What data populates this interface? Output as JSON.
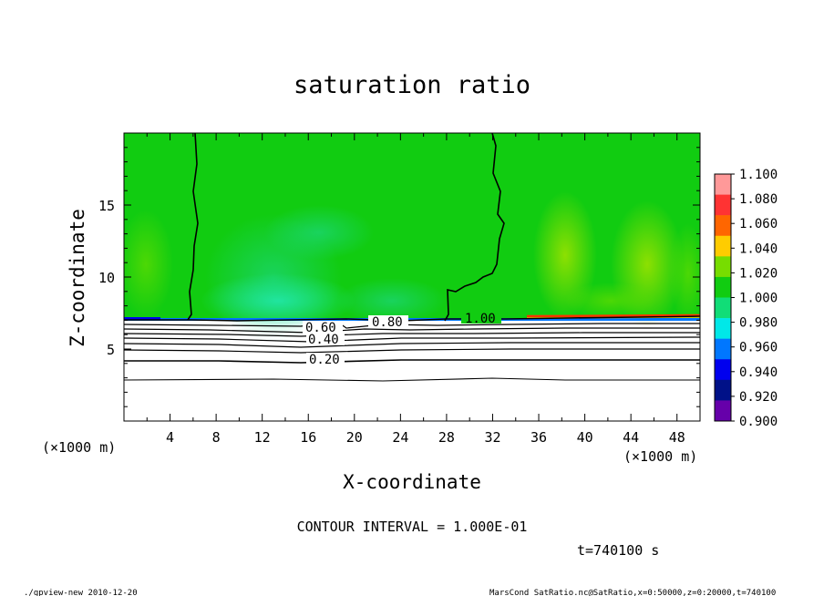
{
  "chart_data": {
    "type": "heatmap",
    "title": "saturation ratio",
    "xlabel": "X-coordinate",
    "ylabel": "Z-coordinate",
    "x_unit": "(×1000 m)",
    "y_unit": "(×1000 m)",
    "xlim": [
      0,
      50
    ],
    "ylim": [
      0,
      20
    ],
    "x_ticks": [
      "4",
      "8",
      "12",
      "16",
      "20",
      "24",
      "28",
      "32",
      "36",
      "40",
      "44",
      "48"
    ],
    "y_ticks": [
      "5",
      "10",
      "15"
    ],
    "colorbar": {
      "levels": [
        "1.100",
        "1.080",
        "1.060",
        "1.040",
        "1.020",
        "1.000",
        "0.980",
        "0.960",
        "0.940",
        "0.920",
        "0.900"
      ],
      "colors": [
        "#ff9999",
        "#ff3333",
        "#ff6600",
        "#ffcc00",
        "#77dd00",
        "#11cc11",
        "#11dd77",
        "#00e8e8",
        "#0077ff",
        "#0000ee",
        "#001188",
        "#6600aa"
      ]
    },
    "contour_labels": [
      "1.00",
      "0.80",
      "0.60",
      "0.40",
      "0.20"
    ],
    "contour_interval": "CONTOUR INTERVAL = 1.000E-01",
    "time_label": "t=740100 s"
  },
  "footer": {
    "left": "./gpview-new  2010-12-20",
    "right": "MarsCond_SatRatio.nc@SatRatio,x=0:50000,z=0:20000,t=740100"
  }
}
